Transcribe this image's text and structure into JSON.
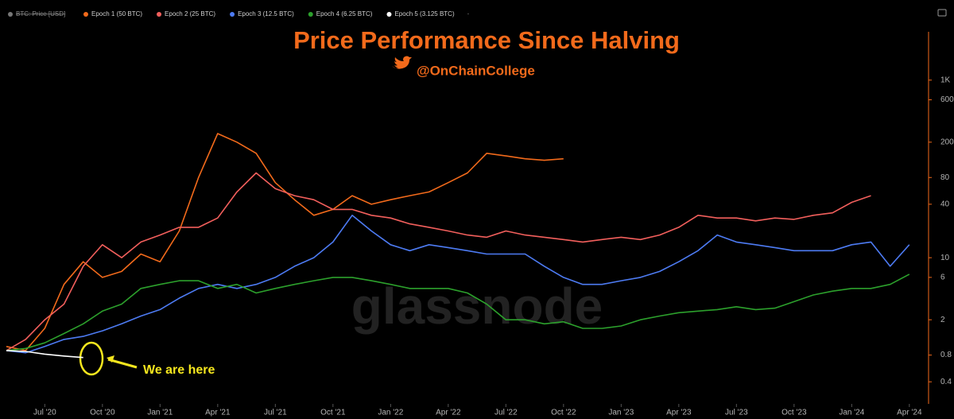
{
  "chart_data": {
    "type": "line",
    "title": "Price Performance Since Halving",
    "subtitle": "@OnChainCollege",
    "watermark": "glassnode",
    "annotation": "We are here",
    "hidden_series": "BTC: Price [USD]",
    "log_y": true,
    "legend": "top-left",
    "x": [
      "2020-05",
      "2020-06",
      "2020-07",
      "2020-08",
      "2020-09",
      "2020-10",
      "2020-11",
      "2020-12",
      "2021-01",
      "2021-02",
      "2021-03",
      "2021-04",
      "2021-05",
      "2021-06",
      "2021-07",
      "2021-08",
      "2021-09",
      "2021-10",
      "2021-11",
      "2021-12",
      "2022-01",
      "2022-02",
      "2022-03",
      "2022-04",
      "2022-05",
      "2022-06",
      "2022-07",
      "2022-08",
      "2022-09",
      "2022-10",
      "2022-11",
      "2022-12",
      "2023-01",
      "2023-02",
      "2023-03",
      "2023-04",
      "2023-05",
      "2023-06",
      "2023-07",
      "2023-08",
      "2023-09",
      "2023-10",
      "2023-11",
      "2023-12",
      "2024-01",
      "2024-02",
      "2024-03",
      "2024-04"
    ],
    "xlim": [
      "2020-05",
      "2024-05"
    ],
    "xticks": [
      {
        "value": "2020-07",
        "label": "Jul '20"
      },
      {
        "value": "2020-10",
        "label": "Oct '20"
      },
      {
        "value": "2021-01",
        "label": "Jan '21"
      },
      {
        "value": "2021-04",
        "label": "Apr '21"
      },
      {
        "value": "2021-07",
        "label": "Jul '21"
      },
      {
        "value": "2021-10",
        "label": "Oct '21"
      },
      {
        "value": "2022-01",
        "label": "Jan '22"
      },
      {
        "value": "2022-04",
        "label": "Apr '22"
      },
      {
        "value": "2022-07",
        "label": "Jul '22"
      },
      {
        "value": "2022-10",
        "label": "Oct '22"
      },
      {
        "value": "2023-01",
        "label": "Jan '23"
      },
      {
        "value": "2023-04",
        "label": "Apr '23"
      },
      {
        "value": "2023-07",
        "label": "Jul '23"
      },
      {
        "value": "2023-10",
        "label": "Oct '23"
      },
      {
        "value": "2024-01",
        "label": "Jan '24"
      },
      {
        "value": "2024-04",
        "label": "Apr '24"
      }
    ],
    "ylim": [
      0.24,
      3500
    ],
    "yticks": [
      0.4,
      0.8,
      2,
      6,
      10,
      40,
      80,
      200,
      600,
      {
        "value": 1000,
        "label": "1K"
      }
    ],
    "series": [
      {
        "name": "Epoch 1 (50 BTC)",
        "color": "#f26a1b",
        "values": [
          1.0,
          0.9,
          1.6,
          5,
          9,
          6,
          7,
          11,
          9,
          20,
          80,
          250,
          200,
          150,
          70,
          45,
          30,
          35,
          50,
          40,
          45,
          50,
          55,
          70,
          90,
          150,
          140,
          130,
          125,
          130,
          null,
          null,
          null,
          null,
          null,
          null,
          null,
          null,
          null,
          null,
          null,
          null,
          null,
          null,
          null,
          null,
          null,
          null
        ]
      },
      {
        "name": "Epoch 2 (25 BTC)",
        "color": "#f25f5c",
        "values": [
          0.9,
          1.2,
          2,
          3,
          8,
          14,
          10,
          15,
          18,
          22,
          22,
          28,
          55,
          90,
          60,
          50,
          45,
          35,
          35,
          30,
          28,
          24,
          22,
          20,
          18,
          17,
          20,
          18,
          17,
          16,
          15,
          16,
          17,
          16,
          18,
          22,
          30,
          28,
          28,
          26,
          28,
          27,
          30,
          32,
          42,
          50,
          null,
          null
        ]
      },
      {
        "name": "Epoch 3 (12.5 BTC)",
        "color": "#4d7bf3",
        "values": [
          0.9,
          0.85,
          1.0,
          1.2,
          1.3,
          1.5,
          1.8,
          2.2,
          2.6,
          3.5,
          4.5,
          5,
          4.5,
          5,
          6,
          8,
          10,
          15,
          30,
          20,
          14,
          12,
          14,
          13,
          12,
          11,
          11,
          11,
          8,
          6,
          5,
          5,
          5.5,
          6,
          7,
          9,
          12,
          18,
          15,
          14,
          13,
          12,
          12,
          12,
          14,
          15,
          8,
          14
        ]
      },
      {
        "name": "Epoch 4 (6.25 BTC)",
        "color": "#2ca02c",
        "values": [
          0.9,
          0.95,
          1.1,
          1.4,
          1.8,
          2.5,
          3,
          4.5,
          5,
          5.5,
          5.5,
          4.5,
          5,
          4,
          4.5,
          5,
          5.5,
          6,
          6,
          5.5,
          5,
          4.5,
          4.5,
          4.5,
          4,
          3,
          2,
          2,
          1.8,
          1.9,
          1.6,
          1.6,
          1.7,
          2,
          2.2,
          2.4,
          2.5,
          2.6,
          2.8,
          2.6,
          2.7,
          3.2,
          3.8,
          4.2,
          4.5,
          4.5,
          5,
          6.5
        ]
      },
      {
        "name": "Epoch 5 (3.125 BTC)",
        "color": "#ffffff",
        "values": [
          0.9,
          0.88,
          0.82,
          0.78,
          0.75,
          null,
          null,
          null,
          null,
          null,
          null,
          null,
          null,
          null,
          null,
          null,
          null,
          null,
          null,
          null,
          null,
          null,
          null,
          null,
          null,
          null,
          null,
          null,
          null,
          null,
          null,
          null,
          null,
          null,
          null,
          null,
          null,
          null,
          null,
          null,
          null,
          null,
          null,
          null,
          null,
          null,
          null,
          null
        ]
      }
    ]
  }
}
